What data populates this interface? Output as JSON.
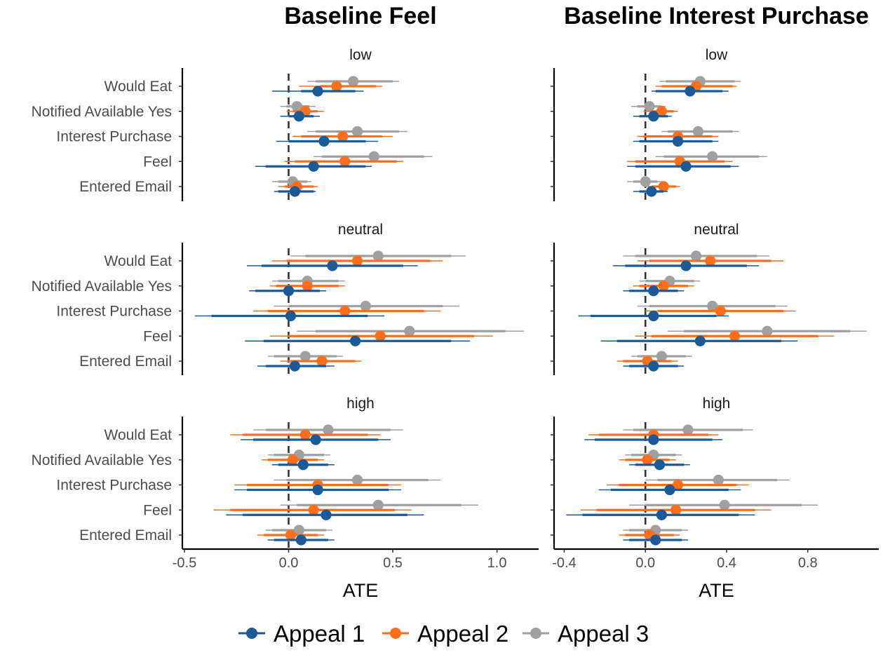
{
  "chart_data": {
    "type": "scatter",
    "columns": [
      "Baseline Feel",
      "Baseline Interest Purchase"
    ],
    "rows": [
      "low",
      "neutral",
      "high"
    ],
    "categories": [
      "Would Eat",
      "Notified Available Yes",
      "Interest Purchase",
      "Feel",
      "Entered Email"
    ],
    "xlabel": "ATE",
    "x_ticks": [
      [
        "-0.5",
        "0.0",
        "0.5",
        "1.0"
      ],
      [
        "-0.4",
        "0.0",
        "0.4",
        "0.8"
      ]
    ],
    "x_tick_values": [
      [
        -0.5,
        0.0,
        0.5,
        1.0
      ],
      [
        -0.4,
        0.0,
        0.4,
        0.8
      ]
    ],
    "xlim": [
      [
        -0.51,
        1.2
      ],
      [
        -0.45,
        1.15
      ]
    ],
    "reference_line": 0,
    "legend_position": "bottom",
    "series": [
      {
        "name": "Appeal 1",
        "color": "#1a5a96",
        "offset": -1
      },
      {
        "name": "Appeal 2",
        "color": "#ff6e1a",
        "offset": 0
      },
      {
        "name": "Appeal 3",
        "color": "#a0a0a0",
        "offset": 1
      }
    ],
    "panels": [
      {
        "col": 0,
        "row": "low",
        "points": {
          "Would Eat": [
            [
              0.14,
              0.06,
              0.32,
              -0.08,
              0.36
            ],
            [
              0.23,
              0.15,
              0.42,
              0.05,
              0.45
            ],
            [
              0.31,
              0.13,
              0.5,
              0.09,
              0.53
            ]
          ],
          "Notified Available Yes": [
            [
              0.05,
              0.0,
              0.12,
              -0.04,
              0.15
            ],
            [
              0.08,
              0.02,
              0.14,
              -0.01,
              0.17
            ],
            [
              0.04,
              -0.01,
              0.1,
              -0.04,
              0.13
            ]
          ],
          "Interest Purchase": [
            [
              0.17,
              0.0,
              0.37,
              -0.06,
              0.43
            ],
            [
              0.26,
              0.06,
              0.45,
              0.02,
              0.5
            ],
            [
              0.33,
              0.13,
              0.53,
              0.09,
              0.57
            ]
          ],
          "Feel": [
            [
              0.12,
              -0.11,
              0.37,
              -0.16,
              0.4
            ],
            [
              0.27,
              0.03,
              0.52,
              -0.02,
              0.55
            ],
            [
              0.41,
              0.16,
              0.65,
              0.12,
              0.69
            ]
          ],
          "Entered Email": [
            [
              0.03,
              -0.05,
              0.12,
              -0.07,
              0.13
            ],
            [
              0.04,
              -0.02,
              0.12,
              -0.05,
              0.14
            ],
            [
              0.02,
              -0.05,
              0.09,
              -0.08,
              0.11
            ]
          ]
        }
      },
      {
        "col": 1,
        "row": "low",
        "points": {
          "Would Eat": [
            [
              0.22,
              0.05,
              0.38,
              0.03,
              0.41
            ],
            [
              0.25,
              0.08,
              0.43,
              0.05,
              0.45
            ],
            [
              0.27,
              0.1,
              0.44,
              0.07,
              0.47
            ]
          ],
          "Notified Available Yes": [
            [
              0.04,
              -0.03,
              0.11,
              -0.06,
              0.13
            ],
            [
              0.08,
              0.02,
              0.14,
              -0.01,
              0.16
            ],
            [
              0.02,
              -0.04,
              0.08,
              -0.07,
              0.1
            ]
          ],
          "Interest Purchase": [
            [
              0.16,
              -0.03,
              0.33,
              -0.06,
              0.36
            ],
            [
              0.16,
              -0.01,
              0.33,
              -0.04,
              0.36
            ],
            [
              0.26,
              0.11,
              0.43,
              0.08,
              0.46
            ]
          ],
          "Feel": [
            [
              0.2,
              -0.05,
              0.42,
              -0.09,
              0.46
            ],
            [
              0.17,
              -0.05,
              0.39,
              -0.09,
              0.43
            ],
            [
              0.33,
              0.09,
              0.56,
              0.05,
              0.6
            ]
          ],
          "Entered Email": [
            [
              0.03,
              -0.03,
              0.09,
              -0.06,
              0.11
            ],
            [
              0.09,
              0.03,
              0.15,
              0.01,
              0.17
            ],
            [
              0.0,
              -0.06,
              0.06,
              -0.09,
              0.09
            ]
          ]
        }
      },
      {
        "col": 0,
        "row": "neutral",
        "points": {
          "Would Eat": [
            [
              0.21,
              -0.13,
              0.55,
              -0.2,
              0.62
            ],
            [
              0.33,
              -0.01,
              0.68,
              -0.08,
              0.74
            ],
            [
              0.43,
              0.08,
              0.78,
              0.01,
              0.85
            ]
          ],
          "Notified Available Yes": [
            [
              0.0,
              -0.16,
              0.15,
              -0.19,
              0.18
            ],
            [
              0.09,
              -0.06,
              0.24,
              -0.09,
              0.27
            ],
            [
              0.09,
              -0.05,
              0.24,
              -0.08,
              0.27
            ]
          ],
          "Interest Purchase": [
            [
              0.01,
              -0.37,
              0.38,
              -0.45,
              0.46
            ],
            [
              0.27,
              -0.1,
              0.65,
              -0.17,
              0.73
            ],
            [
              0.37,
              0.0,
              0.74,
              -0.07,
              0.82
            ]
          ],
          "Feel": [
            [
              0.32,
              -0.12,
              0.78,
              -0.21,
              0.87
            ],
            [
              0.44,
              0.0,
              0.89,
              -0.09,
              0.98
            ],
            [
              0.58,
              0.13,
              1.04,
              0.04,
              1.13
            ]
          ],
          "Entered Email": [
            [
              0.03,
              -0.11,
              0.18,
              -0.15,
              0.22
            ],
            [
              0.16,
              0.0,
              0.32,
              -0.04,
              0.35
            ],
            [
              0.08,
              -0.07,
              0.23,
              -0.1,
              0.26
            ]
          ]
        }
      },
      {
        "col": 1,
        "row": "neutral",
        "points": {
          "Would Eat": [
            [
              0.2,
              -0.1,
              0.5,
              -0.16,
              0.56
            ],
            [
              0.32,
              0.02,
              0.62,
              -0.04,
              0.68
            ],
            [
              0.25,
              -0.05,
              0.55,
              -0.11,
              0.61
            ]
          ],
          "Notified Available Yes": [
            [
              0.04,
              -0.08,
              0.16,
              -0.11,
              0.19
            ],
            [
              0.09,
              -0.03,
              0.21,
              -0.06,
              0.24
            ],
            [
              0.12,
              0.0,
              0.24,
              -0.03,
              0.27
            ]
          ],
          "Interest Purchase": [
            [
              0.04,
              -0.27,
              0.35,
              -0.33,
              0.41
            ],
            [
              0.37,
              0.06,
              0.68,
              0.0,
              0.74
            ],
            [
              0.33,
              0.02,
              0.64,
              -0.04,
              0.7
            ]
          ],
          "Feel": [
            [
              0.27,
              -0.14,
              0.67,
              -0.22,
              0.75
            ],
            [
              0.44,
              0.03,
              0.85,
              -0.05,
              0.93
            ],
            [
              0.6,
              0.19,
              1.01,
              0.11,
              1.09
            ]
          ],
          "Entered Email": [
            [
              0.04,
              -0.08,
              0.16,
              -0.11,
              0.19
            ],
            [
              0.01,
              -0.11,
              0.13,
              -0.14,
              0.16
            ],
            [
              0.08,
              -0.04,
              0.2,
              -0.07,
              0.23
            ]
          ]
        }
      },
      {
        "col": 0,
        "row": "high",
        "points": {
          "Would Eat": [
            [
              0.13,
              -0.17,
              0.43,
              -0.23,
              0.49
            ],
            [
              0.08,
              -0.22,
              0.38,
              -0.28,
              0.44
            ],
            [
              0.19,
              -0.11,
              0.49,
              -0.17,
              0.55
            ]
          ],
          "Notified Available Yes": [
            [
              0.07,
              -0.05,
              0.19,
              -0.08,
              0.22
            ],
            [
              0.02,
              -0.1,
              0.14,
              -0.13,
              0.17
            ],
            [
              0.05,
              -0.07,
              0.17,
              -0.1,
              0.2
            ]
          ],
          "Interest Purchase": [
            [
              0.14,
              -0.2,
              0.48,
              -0.26,
              0.54
            ],
            [
              0.14,
              -0.2,
              0.48,
              -0.26,
              0.54
            ],
            [
              0.33,
              -0.01,
              0.67,
              -0.07,
              0.73
            ]
          ],
          "Feel": [
            [
              0.18,
              -0.22,
              0.57,
              -0.3,
              0.65
            ],
            [
              0.12,
              -0.28,
              0.51,
              -0.36,
              0.59
            ],
            [
              0.43,
              0.04,
              0.83,
              -0.04,
              0.91
            ]
          ],
          "Entered Email": [
            [
              0.06,
              -0.07,
              0.19,
              -0.1,
              0.22
            ],
            [
              0.01,
              -0.12,
              0.14,
              -0.15,
              0.17
            ],
            [
              0.05,
              -0.08,
              0.18,
              -0.11,
              0.21
            ]
          ]
        }
      },
      {
        "col": 1,
        "row": "high",
        "points": {
          "Would Eat": [
            [
              0.04,
              -0.25,
              0.33,
              -0.3,
              0.38
            ],
            [
              0.04,
              -0.23,
              0.31,
              -0.28,
              0.36
            ],
            [
              0.21,
              -0.06,
              0.48,
              -0.11,
              0.53
            ]
          ],
          "Notified Available Yes": [
            [
              0.07,
              -0.05,
              0.19,
              -0.08,
              0.22
            ],
            [
              0.01,
              -0.1,
              0.12,
              -0.13,
              0.15
            ],
            [
              0.04,
              -0.07,
              0.15,
              -0.1,
              0.18
            ]
          ],
          "Interest Purchase": [
            [
              0.12,
              -0.17,
              0.41,
              -0.23,
              0.47
            ],
            [
              0.16,
              -0.13,
              0.45,
              -0.19,
              0.51
            ],
            [
              0.36,
              0.06,
              0.65,
              0.0,
              0.71
            ]
          ],
          "Feel": [
            [
              0.08,
              -0.31,
              0.46,
              -0.39,
              0.54
            ],
            [
              0.15,
              -0.24,
              0.54,
              -0.32,
              0.62
            ],
            [
              0.39,
              0.0,
              0.77,
              -0.08,
              0.85
            ]
          ],
          "Entered Email": [
            [
              0.05,
              -0.08,
              0.18,
              -0.11,
              0.21
            ],
            [
              0.02,
              -0.1,
              0.14,
              -0.13,
              0.17
            ],
            [
              0.05,
              -0.08,
              0.18,
              -0.11,
              0.21
            ]
          ]
        }
      }
    ]
  }
}
